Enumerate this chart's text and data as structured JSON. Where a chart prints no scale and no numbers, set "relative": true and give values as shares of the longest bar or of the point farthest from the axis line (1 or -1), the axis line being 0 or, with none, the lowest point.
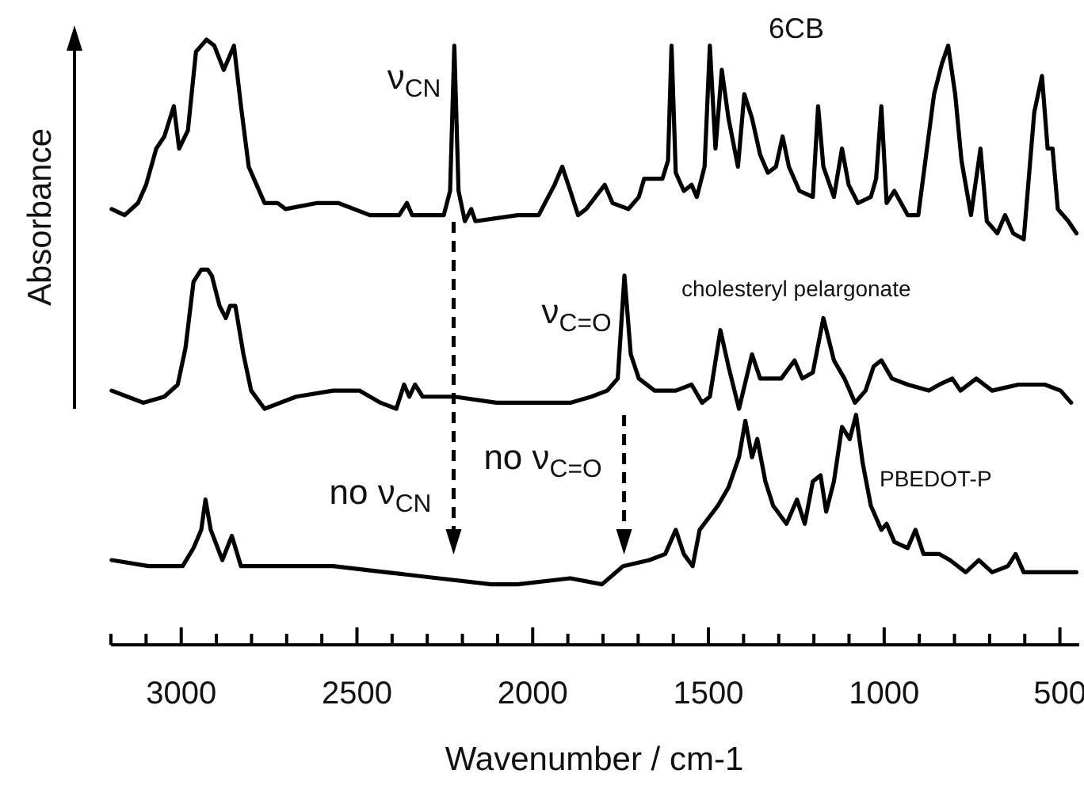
{
  "chart_data": {
    "type": "line",
    "relative": true,
    "xlabel": "Wavenumber / cm-1",
    "ylabel": "Absorbance",
    "xlim": [
      3200,
      445
    ],
    "xticks": [
      {
        "value": 3200,
        "label": null
      },
      {
        "value": 3100,
        "label": null
      },
      3000,
      {
        "value": 2900,
        "label": null
      },
      {
        "value": 2800,
        "label": null
      },
      {
        "value": 2700,
        "label": null
      },
      {
        "value": 2600,
        "label": null
      },
      2500,
      {
        "value": 2400,
        "label": null
      },
      {
        "value": 2300,
        "label": null
      },
      {
        "value": 2200,
        "label": null
      },
      {
        "value": 2100,
        "label": null
      },
      2000,
      {
        "value": 1900,
        "label": null
      },
      {
        "value": 1800,
        "label": null
      },
      {
        "value": 1700,
        "label": null
      },
      {
        "value": 1600,
        "label": null
      },
      1500,
      {
        "value": 1400,
        "label": null
      },
      {
        "value": 1300,
        "label": null
      },
      {
        "value": 1200,
        "label": null
      },
      {
        "value": 1100,
        "label": null
      },
      1000,
      {
        "value": 900,
        "label": null
      },
      {
        "value": 800,
        "label": null
      },
      {
        "value": 700,
        "label": null
      },
      {
        "value": 600,
        "label": null
      },
      500
    ],
    "series": [
      {
        "name": "6CB",
        "color": "#000000",
        "x": [
          3198,
          3161,
          3123,
          3100,
          3071,
          3048,
          3021,
          3006,
          2981,
          2958,
          2928,
          2906,
          2879,
          2850,
          2830,
          2808,
          2763,
          2726,
          2703,
          2613,
          2553,
          2463,
          2380,
          2358,
          2343,
          2253,
          2235,
          2223,
          2211,
          2193,
          2175,
          2163,
          2043,
          1983,
          1938,
          1916,
          1893,
          1871,
          1848,
          1795,
          1773,
          1728,
          1698,
          1683,
          1653,
          1631,
          1615,
          1605,
          1593,
          1570,
          1548,
          1533,
          1511,
          1496,
          1480,
          1462,
          1443,
          1416,
          1398,
          1376,
          1353,
          1331,
          1308,
          1289,
          1271,
          1241,
          1203,
          1188,
          1173,
          1143,
          1120,
          1101,
          1075,
          1038,
          1023,
          1008,
          993,
          971,
          933,
          903,
          858,
          836,
          818,
          798,
          780,
          753,
          726,
          708,
          678,
          656,
          633,
          603,
          573,
          551,
          535,
          521,
          506,
          476,
          453
        ],
        "values": [
          0.72,
          0.71,
          0.73,
          0.76,
          0.82,
          0.84,
          0.89,
          0.82,
          0.85,
          0.98,
          1.0,
          0.99,
          0.95,
          0.99,
          0.89,
          0.79,
          0.73,
          0.73,
          0.72,
          0.73,
          0.73,
          0.71,
          0.71,
          0.73,
          0.71,
          0.71,
          0.75,
          0.99,
          0.75,
          0.7,
          0.72,
          0.7,
          0.71,
          0.71,
          0.76,
          0.79,
          0.75,
          0.71,
          0.72,
          0.76,
          0.73,
          0.72,
          0.74,
          0.77,
          0.77,
          0.77,
          0.8,
          0.99,
          0.78,
          0.75,
          0.76,
          0.74,
          0.79,
          0.99,
          0.82,
          0.95,
          0.87,
          0.79,
          0.91,
          0.87,
          0.81,
          0.78,
          0.79,
          0.84,
          0.79,
          0.75,
          0.74,
          0.89,
          0.79,
          0.74,
          0.82,
          0.76,
          0.73,
          0.74,
          0.77,
          0.89,
          0.73,
          0.75,
          0.71,
          0.71,
          0.91,
          0.96,
          0.99,
          0.91,
          0.8,
          0.71,
          0.82,
          0.7,
          0.68,
          0.71,
          0.68,
          0.67,
          0.88,
          0.94,
          0.82,
          0.82,
          0.72,
          0.7,
          0.68
        ]
      },
      {
        "name": "cholesteryl pelargonate",
        "color": "#000000",
        "x": [
          3198,
          3153,
          3108,
          3048,
          3010,
          2988,
          2965,
          2943,
          2925,
          2913,
          2891,
          2873,
          2861,
          2846,
          2823,
          2801,
          2763,
          2673,
          2568,
          2493,
          2433,
          2388,
          2366,
          2351,
          2335,
          2313,
          2223,
          2103,
          1968,
          1893,
          1833,
          1788,
          1758,
          1739,
          1721,
          1698,
          1653,
          1593,
          1548,
          1518,
          1496,
          1466,
          1443,
          1413,
          1376,
          1353,
          1323,
          1293,
          1255,
          1233,
          1203,
          1173,
          1143,
          1113,
          1083,
          1053,
          1030,
          1008,
          978,
          933,
          873,
          843,
          806,
          783,
          738,
          693,
          618,
          543,
          498,
          468
        ],
        "values": [
          0.42,
          0.41,
          0.4,
          0.41,
          0.43,
          0.49,
          0.6,
          0.62,
          0.62,
          0.61,
          0.56,
          0.54,
          0.56,
          0.56,
          0.48,
          0.42,
          0.39,
          0.41,
          0.42,
          0.42,
          0.4,
          0.39,
          0.43,
          0.41,
          0.43,
          0.41,
          0.41,
          0.4,
          0.4,
          0.4,
          0.41,
          0.42,
          0.44,
          0.61,
          0.48,
          0.44,
          0.42,
          0.42,
          0.43,
          0.4,
          0.41,
          0.52,
          0.46,
          0.39,
          0.48,
          0.44,
          0.44,
          0.44,
          0.47,
          0.44,
          0.45,
          0.54,
          0.47,
          0.44,
          0.4,
          0.42,
          0.46,
          0.47,
          0.44,
          0.43,
          0.42,
          0.43,
          0.44,
          0.42,
          0.44,
          0.42,
          0.43,
          0.43,
          0.42,
          0.4
        ]
      },
      {
        "name": "PBEDOT-P",
        "color": "#000000",
        "x": [
          3198,
          3093,
          2996,
          2965,
          2943,
          2931,
          2916,
          2883,
          2856,
          2830,
          2718,
          2568,
          2418,
          2268,
          2118,
          2043,
          1893,
          1803,
          1743,
          1668,
          1623,
          1593,
          1570,
          1545,
          1525,
          1473,
          1443,
          1413,
          1395,
          1376,
          1361,
          1338,
          1316,
          1278,
          1248,
          1226,
          1203,
          1181,
          1165,
          1143,
          1120,
          1098,
          1080,
          1061,
          1038,
          1008,
          993,
          971,
          933,
          911,
          888,
          843,
          813,
          768,
          731,
          693,
          648,
          626,
          603,
          543,
          453
        ],
        "values": [
          0.14,
          0.13,
          0.13,
          0.16,
          0.19,
          0.24,
          0.19,
          0.14,
          0.18,
          0.13,
          0.13,
          0.13,
          0.12,
          0.11,
          0.1,
          0.1,
          0.11,
          0.1,
          0.13,
          0.14,
          0.15,
          0.19,
          0.15,
          0.13,
          0.19,
          0.23,
          0.26,
          0.31,
          0.37,
          0.31,
          0.34,
          0.27,
          0.23,
          0.2,
          0.24,
          0.2,
          0.27,
          0.28,
          0.22,
          0.27,
          0.36,
          0.34,
          0.38,
          0.3,
          0.23,
          0.19,
          0.2,
          0.17,
          0.16,
          0.19,
          0.15,
          0.15,
          0.14,
          0.12,
          0.14,
          0.12,
          0.13,
          0.15,
          0.12,
          0.12,
          0.12
        ]
      }
    ],
    "annotations": [
      {
        "text": "ν$_{CN}$",
        "x": 2225,
        "y": 0.99
      },
      {
        "text": "ν$_{C=O}$",
        "x": 1740,
        "y": 0.61
      },
      "no ν$_{CN}$",
      "no ν$_{C=O}$"
    ]
  }
}
